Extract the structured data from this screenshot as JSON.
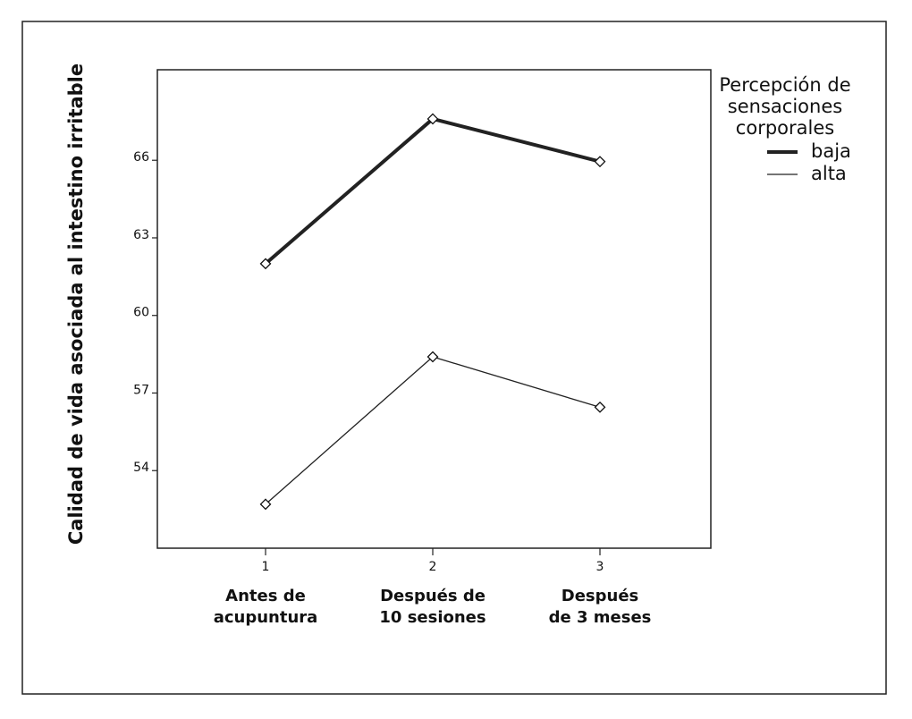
{
  "chart_data": {
    "type": "line",
    "x_ticks": [
      "1",
      "2",
      "3"
    ],
    "categories": [
      [
        "Antes de",
        "acupuntura"
      ],
      [
        "Después de",
        "10 sesiones"
      ],
      [
        "Después",
        "de 3 meses"
      ]
    ],
    "ylabel": "Calidad de vida asociada al intestino irritable",
    "y_ticks": [
      54,
      57,
      60,
      63,
      66
    ],
    "ylim": [
      51,
      69.5
    ],
    "grid": false,
    "legend": {
      "title": [
        "Percepción de",
        "sensaciones",
        "corporales"
      ],
      "placement": "right"
    },
    "series": [
      {
        "name": "baja",
        "values": [
          62.0,
          67.6,
          65.95
        ],
        "stroke": "#222222",
        "weight": "thick"
      },
      {
        "name": "alta",
        "values": [
          52.7,
          58.4,
          56.45
        ],
        "stroke": "#222222",
        "weight": "thin"
      }
    ],
    "marker": "diamond-open"
  }
}
